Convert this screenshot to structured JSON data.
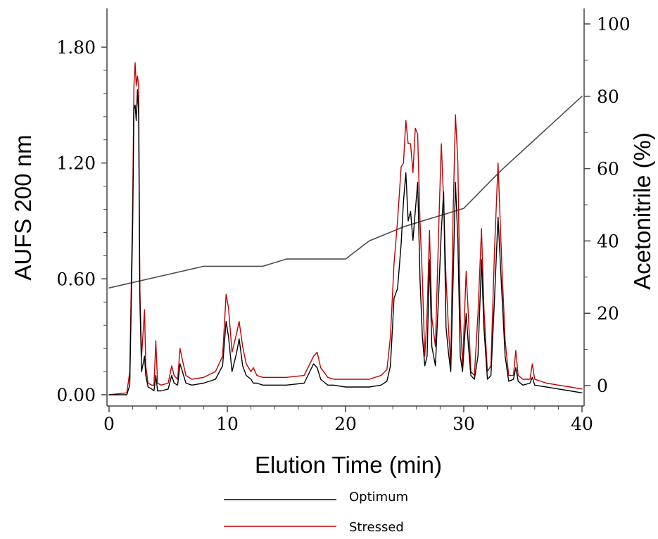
{
  "chart_data": {
    "type": "line",
    "title": "",
    "xlabel": "Elution Time (min)",
    "ylabel": "AUFS 200 nm",
    "y2label": "Acetonitrile (%)",
    "xlim": [
      0,
      40
    ],
    "ylim": [
      0,
      1.8
    ],
    "y2lim": [
      0,
      100
    ],
    "x_ticks": [
      "0",
      "10",
      "20",
      "30",
      "40"
    ],
    "y_ticks": [
      "0.00",
      "0.60",
      "1.20",
      "1.80"
    ],
    "y2_ticks": [
      "0",
      "20",
      "40",
      "60",
      "80",
      "100"
    ],
    "grid": false,
    "legend_position": "bottom",
    "series": [
      {
        "name": "Optimum",
        "color": "#000000",
        "axis": "left",
        "x": [
          0,
          1.5,
          1.75,
          2.0,
          2.1,
          2.2,
          2.3,
          2.4,
          2.5,
          2.6,
          2.75,
          3.0,
          3.1,
          3.3,
          3.6,
          3.8,
          3.95,
          4.1,
          4.4,
          5.0,
          5.3,
          5.5,
          5.8,
          6.0,
          6.2,
          6.5,
          7.0,
          8.0,
          9.0,
          9.6,
          9.9,
          10.1,
          10.4,
          10.8,
          11.0,
          11.3,
          11.6,
          12.0,
          12.2,
          12.5,
          13.0,
          15.0,
          16.5,
          17.3,
          17.6,
          17.9,
          18.5,
          19.0,
          20.0,
          22.0,
          23.0,
          23.5,
          23.8,
          24.1,
          24.4,
          24.7,
          24.9,
          25.1,
          25.3,
          25.5,
          25.7,
          25.9,
          26.1,
          26.3,
          26.5,
          26.7,
          26.9,
          27.1,
          27.3,
          27.6,
          27.9,
          28.1,
          28.3,
          28.5,
          28.7,
          28.9,
          29.1,
          29.3,
          29.5,
          29.7,
          29.9,
          30.2,
          30.4,
          30.6,
          30.9,
          31.2,
          31.5,
          31.7,
          32.0,
          32.3,
          32.6,
          32.9,
          33.2,
          33.5,
          33.8,
          34.2,
          34.4,
          34.6,
          35.0,
          35.6,
          35.8,
          36.0,
          37.0,
          38.0,
          39.0,
          40.0
        ],
        "values": [
          0,
          0.0,
          0.05,
          0.9,
          1.48,
          1.5,
          1.42,
          1.58,
          1.45,
          0.5,
          0.12,
          0.2,
          0.1,
          0.04,
          0.03,
          0.02,
          0.1,
          0.02,
          0.02,
          0.03,
          0.1,
          0.06,
          0.05,
          0.16,
          0.12,
          0.06,
          0.05,
          0.06,
          0.08,
          0.15,
          0.38,
          0.3,
          0.12,
          0.22,
          0.29,
          0.15,
          0.1,
          0.08,
          0.06,
          0.06,
          0.05,
          0.05,
          0.06,
          0.16,
          0.14,
          0.08,
          0.05,
          0.05,
          0.04,
          0.04,
          0.05,
          0.07,
          0.15,
          0.5,
          0.55,
          0.78,
          1.0,
          1.15,
          0.9,
          0.95,
          0.8,
          0.95,
          1.1,
          0.6,
          0.3,
          0.15,
          0.2,
          0.7,
          0.25,
          0.15,
          0.55,
          0.85,
          1.05,
          0.35,
          0.22,
          0.12,
          0.6,
          1.1,
          0.8,
          0.2,
          0.12,
          0.42,
          0.25,
          0.1,
          0.08,
          0.2,
          0.7,
          0.35,
          0.08,
          0.1,
          0.5,
          0.92,
          0.55,
          0.2,
          0.07,
          0.08,
          0.14,
          0.07,
          0.05,
          0.06,
          0.09,
          0.05,
          0.04,
          0.03,
          0.02,
          0.01
        ]
      },
      {
        "name": "Stressed",
        "color": "#c00000",
        "axis": "left",
        "x": [
          0,
          1.5,
          1.75,
          2.0,
          2.1,
          2.2,
          2.3,
          2.4,
          2.5,
          2.6,
          2.75,
          3.0,
          3.1,
          3.3,
          3.6,
          3.8,
          3.95,
          4.1,
          4.4,
          5.0,
          5.3,
          5.5,
          5.8,
          6.0,
          6.2,
          6.5,
          7.0,
          8.0,
          9.0,
          9.6,
          9.9,
          10.1,
          10.4,
          10.8,
          11.0,
          11.3,
          11.6,
          12.0,
          12.2,
          12.5,
          13.0,
          15.0,
          16.5,
          17.3,
          17.6,
          17.9,
          18.5,
          19.0,
          20.0,
          22.0,
          23.0,
          23.5,
          23.8,
          24.1,
          24.4,
          24.7,
          24.9,
          25.1,
          25.3,
          25.5,
          25.7,
          25.9,
          26.1,
          26.3,
          26.5,
          26.7,
          26.9,
          27.1,
          27.3,
          27.6,
          27.9,
          28.1,
          28.3,
          28.5,
          28.7,
          28.9,
          29.1,
          29.3,
          29.5,
          29.7,
          29.9,
          30.2,
          30.4,
          30.6,
          30.9,
          31.2,
          31.5,
          31.7,
          32.0,
          32.3,
          32.6,
          32.9,
          33.2,
          33.5,
          33.8,
          34.2,
          34.4,
          34.6,
          35.0,
          35.6,
          35.8,
          36.0,
          37.0,
          38.0,
          39.0,
          40.0
        ],
        "values": [
          0,
          0.01,
          0.12,
          1.0,
          1.6,
          1.72,
          1.6,
          1.65,
          1.6,
          0.55,
          0.2,
          0.44,
          0.15,
          0.06,
          0.05,
          0.05,
          0.28,
          0.06,
          0.05,
          0.06,
          0.15,
          0.1,
          0.08,
          0.24,
          0.18,
          0.1,
          0.08,
          0.09,
          0.12,
          0.2,
          0.52,
          0.45,
          0.22,
          0.32,
          0.38,
          0.25,
          0.16,
          0.12,
          0.14,
          0.1,
          0.09,
          0.09,
          0.1,
          0.2,
          0.22,
          0.14,
          0.09,
          0.08,
          0.08,
          0.08,
          0.1,
          0.13,
          0.3,
          0.68,
          0.9,
          1.18,
          1.2,
          1.42,
          1.3,
          1.3,
          1.15,
          1.38,
          1.35,
          0.9,
          0.6,
          0.2,
          0.42,
          0.85,
          0.4,
          0.25,
          0.9,
          1.3,
          1.0,
          0.6,
          0.35,
          0.15,
          0.95,
          1.45,
          1.2,
          0.4,
          0.15,
          0.64,
          0.4,
          0.12,
          0.1,
          0.42,
          0.86,
          0.45,
          0.12,
          0.15,
          0.75,
          1.2,
          0.7,
          0.28,
          0.1,
          0.1,
          0.23,
          0.1,
          0.08,
          0.08,
          0.16,
          0.08,
          0.06,
          0.05,
          0.04,
          0.03
        ]
      },
      {
        "name": "",
        "color": "#4d4d4d",
        "axis": "right",
        "x": [
          0,
          8,
          13,
          15,
          20,
          22,
          25,
          28,
          30,
          33,
          40
        ],
        "values": [
          27,
          33,
          33,
          35,
          35,
          40,
          44,
          47,
          49,
          59,
          80
        ]
      }
    ]
  }
}
